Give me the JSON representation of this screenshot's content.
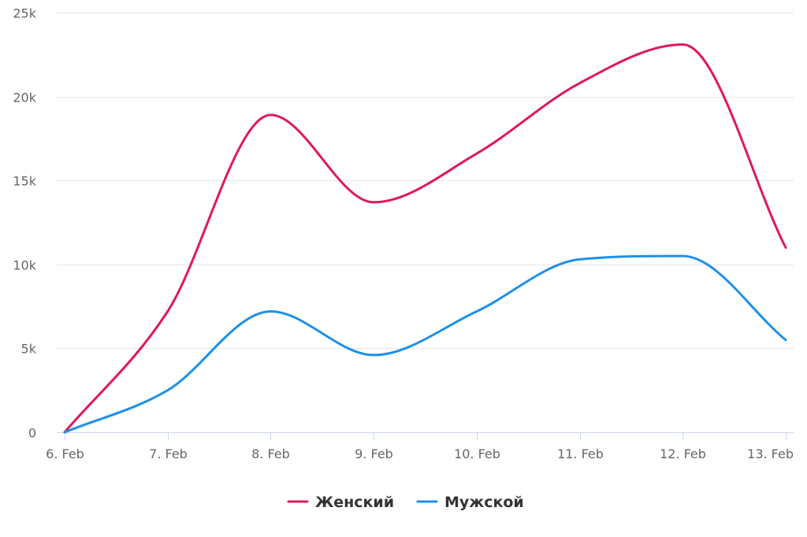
{
  "chart_data": {
    "type": "line",
    "title": "",
    "xlabel": "",
    "ylabel": "",
    "categories": [
      "6. Feb",
      "7. Feb",
      "8. Feb",
      "9. Feb",
      "10. Feb",
      "11. Feb",
      "12. Feb",
      "13. Feb"
    ],
    "series": [
      {
        "name": "Женский",
        "color": "#e0185c",
        "values": [
          0,
          7200,
          18900,
          13700,
          16600,
          20800,
          23100,
          11000
        ]
      },
      {
        "name": "Мужской",
        "color": "#1e90e8",
        "values": [
          0,
          2500,
          7200,
          4600,
          7200,
          10300,
          10500,
          5500
        ]
      }
    ],
    "ylim": [
      0,
      25000
    ],
    "yticks": [
      0,
      5000,
      10000,
      15000,
      20000,
      25000
    ],
    "ytick_labels": [
      "0",
      "5k",
      "10k",
      "15k",
      "20k",
      "25k"
    ],
    "grid": true,
    "legend": "bottom-center"
  }
}
